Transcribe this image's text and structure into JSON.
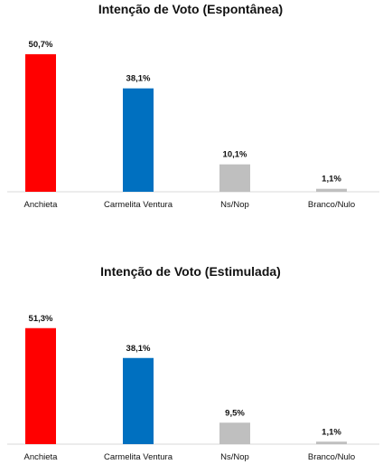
{
  "chart_data": [
    {
      "type": "bar",
      "title": "Intenção de Voto (Espontânea)",
      "categories": [
        "Anchieta",
        "Carmelita Ventura",
        "Ns/Nop",
        "Branco/Nulo"
      ],
      "values": [
        50.7,
        38.1,
        10.1,
        1.1
      ],
      "value_labels": [
        "50,7%",
        "38,1%",
        "10,1%",
        "1,1%"
      ],
      "colors": [
        "#ff0000",
        "#0070c0",
        "#bfbfbf",
        "#bfbfbf"
      ],
      "xlabel": "",
      "ylabel": "",
      "ylim": [
        0,
        60
      ],
      "grid": false,
      "legend": "none"
    },
    {
      "type": "bar",
      "title": "Intenção de Voto (Estimulada)",
      "categories": [
        "Anchieta",
        "Carmelita Ventura",
        "Ns/Nop",
        "Branco/Nulo"
      ],
      "values": [
        51.3,
        38.1,
        9.5,
        1.1
      ],
      "value_labels": [
        "51,3%",
        "38,1%",
        "9,5%",
        "1,1%"
      ],
      "colors": [
        "#ff0000",
        "#0070c0",
        "#bfbfbf",
        "#bfbfbf"
      ],
      "xlabel": "",
      "ylabel": "",
      "ylim": [
        0,
        60
      ],
      "grid": false,
      "legend": "none"
    }
  ]
}
